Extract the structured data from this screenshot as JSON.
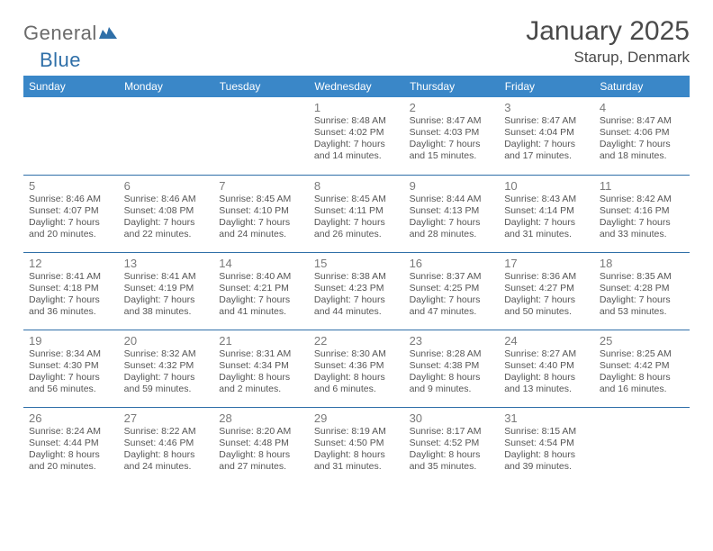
{
  "logo": {
    "word1": "General",
    "word2": "Blue"
  },
  "header": {
    "month_title": "January 2025",
    "location": "Starup, Denmark"
  },
  "colors": {
    "header_bg": "#3a87c8",
    "header_text": "#ffffff",
    "row_border": "#2f6fa8",
    "body_text": "#555555",
    "daynum_text": "#7a7a7a",
    "title_text": "#4a4a4a",
    "logo_gray": "#6b6b6b",
    "logo_blue": "#2f6fa8",
    "page_bg": "#ffffff"
  },
  "weekday_headers": [
    "Sunday",
    "Monday",
    "Tuesday",
    "Wednesday",
    "Thursday",
    "Friday",
    "Saturday"
  ],
  "weeks": [
    [
      null,
      null,
      null,
      {
        "n": "1",
        "sunrise": "Sunrise: 8:48 AM",
        "sunset": "Sunset: 4:02 PM",
        "d1": "Daylight: 7 hours",
        "d2": "and 14 minutes."
      },
      {
        "n": "2",
        "sunrise": "Sunrise: 8:47 AM",
        "sunset": "Sunset: 4:03 PM",
        "d1": "Daylight: 7 hours",
        "d2": "and 15 minutes."
      },
      {
        "n": "3",
        "sunrise": "Sunrise: 8:47 AM",
        "sunset": "Sunset: 4:04 PM",
        "d1": "Daylight: 7 hours",
        "d2": "and 17 minutes."
      },
      {
        "n": "4",
        "sunrise": "Sunrise: 8:47 AM",
        "sunset": "Sunset: 4:06 PM",
        "d1": "Daylight: 7 hours",
        "d2": "and 18 minutes."
      }
    ],
    [
      {
        "n": "5",
        "sunrise": "Sunrise: 8:46 AM",
        "sunset": "Sunset: 4:07 PM",
        "d1": "Daylight: 7 hours",
        "d2": "and 20 minutes."
      },
      {
        "n": "6",
        "sunrise": "Sunrise: 8:46 AM",
        "sunset": "Sunset: 4:08 PM",
        "d1": "Daylight: 7 hours",
        "d2": "and 22 minutes."
      },
      {
        "n": "7",
        "sunrise": "Sunrise: 8:45 AM",
        "sunset": "Sunset: 4:10 PM",
        "d1": "Daylight: 7 hours",
        "d2": "and 24 minutes."
      },
      {
        "n": "8",
        "sunrise": "Sunrise: 8:45 AM",
        "sunset": "Sunset: 4:11 PM",
        "d1": "Daylight: 7 hours",
        "d2": "and 26 minutes."
      },
      {
        "n": "9",
        "sunrise": "Sunrise: 8:44 AM",
        "sunset": "Sunset: 4:13 PM",
        "d1": "Daylight: 7 hours",
        "d2": "and 28 minutes."
      },
      {
        "n": "10",
        "sunrise": "Sunrise: 8:43 AM",
        "sunset": "Sunset: 4:14 PM",
        "d1": "Daylight: 7 hours",
        "d2": "and 31 minutes."
      },
      {
        "n": "11",
        "sunrise": "Sunrise: 8:42 AM",
        "sunset": "Sunset: 4:16 PM",
        "d1": "Daylight: 7 hours",
        "d2": "and 33 minutes."
      }
    ],
    [
      {
        "n": "12",
        "sunrise": "Sunrise: 8:41 AM",
        "sunset": "Sunset: 4:18 PM",
        "d1": "Daylight: 7 hours",
        "d2": "and 36 minutes."
      },
      {
        "n": "13",
        "sunrise": "Sunrise: 8:41 AM",
        "sunset": "Sunset: 4:19 PM",
        "d1": "Daylight: 7 hours",
        "d2": "and 38 minutes."
      },
      {
        "n": "14",
        "sunrise": "Sunrise: 8:40 AM",
        "sunset": "Sunset: 4:21 PM",
        "d1": "Daylight: 7 hours",
        "d2": "and 41 minutes."
      },
      {
        "n": "15",
        "sunrise": "Sunrise: 8:38 AM",
        "sunset": "Sunset: 4:23 PM",
        "d1": "Daylight: 7 hours",
        "d2": "and 44 minutes."
      },
      {
        "n": "16",
        "sunrise": "Sunrise: 8:37 AM",
        "sunset": "Sunset: 4:25 PM",
        "d1": "Daylight: 7 hours",
        "d2": "and 47 minutes."
      },
      {
        "n": "17",
        "sunrise": "Sunrise: 8:36 AM",
        "sunset": "Sunset: 4:27 PM",
        "d1": "Daylight: 7 hours",
        "d2": "and 50 minutes."
      },
      {
        "n": "18",
        "sunrise": "Sunrise: 8:35 AM",
        "sunset": "Sunset: 4:28 PM",
        "d1": "Daylight: 7 hours",
        "d2": "and 53 minutes."
      }
    ],
    [
      {
        "n": "19",
        "sunrise": "Sunrise: 8:34 AM",
        "sunset": "Sunset: 4:30 PM",
        "d1": "Daylight: 7 hours",
        "d2": "and 56 minutes."
      },
      {
        "n": "20",
        "sunrise": "Sunrise: 8:32 AM",
        "sunset": "Sunset: 4:32 PM",
        "d1": "Daylight: 7 hours",
        "d2": "and 59 minutes."
      },
      {
        "n": "21",
        "sunrise": "Sunrise: 8:31 AM",
        "sunset": "Sunset: 4:34 PM",
        "d1": "Daylight: 8 hours",
        "d2": "and 2 minutes."
      },
      {
        "n": "22",
        "sunrise": "Sunrise: 8:30 AM",
        "sunset": "Sunset: 4:36 PM",
        "d1": "Daylight: 8 hours",
        "d2": "and 6 minutes."
      },
      {
        "n": "23",
        "sunrise": "Sunrise: 8:28 AM",
        "sunset": "Sunset: 4:38 PM",
        "d1": "Daylight: 8 hours",
        "d2": "and 9 minutes."
      },
      {
        "n": "24",
        "sunrise": "Sunrise: 8:27 AM",
        "sunset": "Sunset: 4:40 PM",
        "d1": "Daylight: 8 hours",
        "d2": "and 13 minutes."
      },
      {
        "n": "25",
        "sunrise": "Sunrise: 8:25 AM",
        "sunset": "Sunset: 4:42 PM",
        "d1": "Daylight: 8 hours",
        "d2": "and 16 minutes."
      }
    ],
    [
      {
        "n": "26",
        "sunrise": "Sunrise: 8:24 AM",
        "sunset": "Sunset: 4:44 PM",
        "d1": "Daylight: 8 hours",
        "d2": "and 20 minutes."
      },
      {
        "n": "27",
        "sunrise": "Sunrise: 8:22 AM",
        "sunset": "Sunset: 4:46 PM",
        "d1": "Daylight: 8 hours",
        "d2": "and 24 minutes."
      },
      {
        "n": "28",
        "sunrise": "Sunrise: 8:20 AM",
        "sunset": "Sunset: 4:48 PM",
        "d1": "Daylight: 8 hours",
        "d2": "and 27 minutes."
      },
      {
        "n": "29",
        "sunrise": "Sunrise: 8:19 AM",
        "sunset": "Sunset: 4:50 PM",
        "d1": "Daylight: 8 hours",
        "d2": "and 31 minutes."
      },
      {
        "n": "30",
        "sunrise": "Sunrise: 8:17 AM",
        "sunset": "Sunset: 4:52 PM",
        "d1": "Daylight: 8 hours",
        "d2": "and 35 minutes."
      },
      {
        "n": "31",
        "sunrise": "Sunrise: 8:15 AM",
        "sunset": "Sunset: 4:54 PM",
        "d1": "Daylight: 8 hours",
        "d2": "and 39 minutes."
      },
      null
    ]
  ]
}
